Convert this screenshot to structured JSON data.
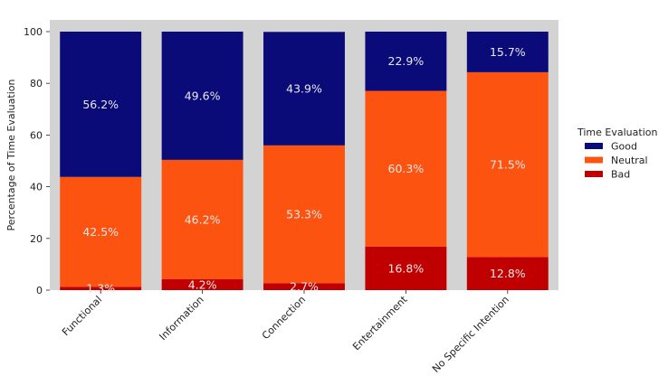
{
  "chart_data": {
    "type": "bar",
    "stacked": true,
    "title": "",
    "xlabel": "",
    "ylabel": "Percentage of Time Evaluation",
    "ylim": [
      0,
      100
    ],
    "yticks": [
      0,
      20,
      40,
      60,
      80,
      100
    ],
    "categories": [
      "Functional",
      "Information",
      "Connection",
      "Entertainment",
      "No Specific Intention"
    ],
    "series": [
      {
        "name": "Bad",
        "color": "#c00000",
        "values": [
          1.3,
          4.2,
          2.7,
          16.8,
          12.8
        ],
        "labels": [
          "1.3%",
          "4.2%",
          "2.7%",
          "16.8%",
          "12.8%"
        ]
      },
      {
        "name": "Neutral",
        "color": "#fc5310",
        "values": [
          42.5,
          46.2,
          53.3,
          60.3,
          71.5
        ],
        "labels": [
          "42.5%",
          "46.2%",
          "53.3%",
          "60.3%",
          "71.5%"
        ]
      },
      {
        "name": "Good",
        "color": "#0a0a78",
        "values": [
          56.2,
          49.6,
          43.9,
          22.9,
          15.7
        ],
        "labels": [
          "56.2%",
          "49.6%",
          "43.9%",
          "22.9%",
          "15.7%"
        ]
      }
    ],
    "legend": {
      "title": "Time Evaluation",
      "placement": "right",
      "entries": [
        "Good",
        "Neutral",
        "Bad"
      ]
    },
    "plot_background": "#d3d3d3"
  }
}
